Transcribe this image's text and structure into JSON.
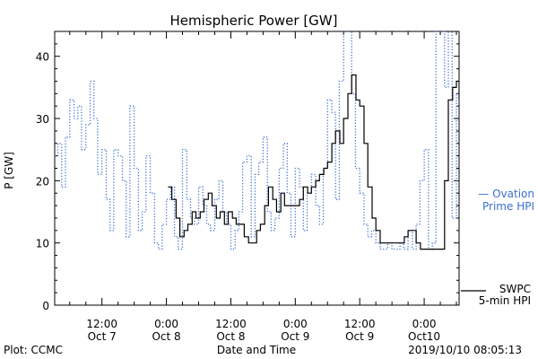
{
  "chart_data": {
    "type": "line",
    "title": "Hemispheric Power [GW]",
    "ylabel": "P [GW]",
    "xlabel": "Date and Time",
    "ylim": [
      0,
      44
    ],
    "yticks": [
      0,
      10,
      20,
      30,
      40
    ],
    "x_unit": "hours since 2019-10-07 00:00 UT",
    "xlim": [
      3.2,
      78.5
    ],
    "xticks": [
      {
        "t": 12,
        "time": "12:00",
        "date": "Oct 7"
      },
      {
        "t": 24,
        "time": "0:00",
        "date": "Oct 8"
      },
      {
        "t": 36,
        "time": "12:00",
        "date": "Oct 8"
      },
      {
        "t": 48,
        "time": "0:00",
        "date": "Oct 9"
      },
      {
        "t": 60,
        "time": "12:00",
        "date": "Oct 9"
      },
      {
        "t": 72,
        "time": "0:00",
        "date": "Oct10"
      }
    ],
    "grid": false,
    "legend": "right",
    "series": [
      {
        "name": "SWPC 5-min HPI",
        "color": "#000000",
        "style": "solid",
        "label_lines": [
          "SWPC",
          "5-min HPI"
        ],
        "points": [
          [
            24.3,
            19
          ],
          [
            25.0,
            17
          ],
          [
            25.8,
            14
          ],
          [
            26.5,
            11
          ],
          [
            27.3,
            12
          ],
          [
            28.0,
            13
          ],
          [
            28.8,
            15
          ],
          [
            29.5,
            14
          ],
          [
            30.3,
            15
          ],
          [
            31.0,
            17
          ],
          [
            31.8,
            18
          ],
          [
            32.5,
            16
          ],
          [
            33.3,
            14
          ],
          [
            34.0,
            15
          ],
          [
            34.8,
            13
          ],
          [
            35.5,
            15
          ],
          [
            36.3,
            14
          ],
          [
            37.0,
            13
          ],
          [
            37.8,
            13
          ],
          [
            38.5,
            11
          ],
          [
            39.3,
            10
          ],
          [
            40.0,
            10
          ],
          [
            40.8,
            12
          ],
          [
            41.5,
            13
          ],
          [
            42.3,
            16
          ],
          [
            43.0,
            19
          ],
          [
            43.8,
            17
          ],
          [
            44.5,
            15
          ],
          [
            45.3,
            18
          ],
          [
            46.0,
            16
          ],
          [
            47.0,
            16
          ],
          [
            48.0,
            16
          ],
          [
            48.8,
            17
          ],
          [
            49.5,
            19
          ],
          [
            50.3,
            18
          ],
          [
            51.0,
            19
          ],
          [
            51.8,
            20
          ],
          [
            52.5,
            21
          ],
          [
            53.3,
            22
          ],
          [
            54.0,
            23
          ],
          [
            54.8,
            26
          ],
          [
            55.5,
            28
          ],
          [
            56.3,
            26
          ],
          [
            57.0,
            30
          ],
          [
            57.8,
            34
          ],
          [
            58.5,
            37
          ],
          [
            59.3,
            33
          ],
          [
            60.0,
            32
          ],
          [
            60.8,
            26
          ],
          [
            61.5,
            19
          ],
          [
            62.3,
            14
          ],
          [
            63.0,
            12
          ],
          [
            63.8,
            10
          ],
          [
            64.5,
            10
          ],
          [
            65.3,
            10
          ],
          [
            66.0,
            10
          ],
          [
            66.8,
            10
          ],
          [
            67.5,
            10
          ],
          [
            68.3,
            11
          ],
          [
            69.0,
            12
          ],
          [
            69.8,
            12
          ],
          [
            70.5,
            10
          ],
          [
            71.3,
            9
          ],
          [
            72.0,
            9
          ],
          [
            72.8,
            9
          ],
          [
            73.5,
            9
          ],
          [
            74.3,
            9
          ],
          [
            75.0,
            9
          ],
          [
            75.8,
            20
          ],
          [
            76.5,
            33
          ],
          [
            77.3,
            35
          ],
          [
            78.0,
            36
          ],
          [
            78.5,
            33
          ]
        ]
      },
      {
        "name": "Ovation Prime HPI",
        "color": "#3b6fd1",
        "style": "dotted",
        "label_lines": [
          "— Ovation",
          "Prime HPI"
        ],
        "points": [
          [
            3.2,
            24
          ],
          [
            3.8,
            26
          ],
          [
            4.5,
            19
          ],
          [
            5.2,
            27
          ],
          [
            6.0,
            33
          ],
          [
            6.8,
            30
          ],
          [
            7.5,
            32
          ],
          [
            8.2,
            25
          ],
          [
            9.0,
            29
          ],
          [
            9.8,
            36
          ],
          [
            10.5,
            30
          ],
          [
            11.2,
            21
          ],
          [
            12.0,
            25
          ],
          [
            12.8,
            17
          ],
          [
            13.5,
            12
          ],
          [
            14.2,
            25
          ],
          [
            15.0,
            24
          ],
          [
            15.8,
            20
          ],
          [
            16.5,
            11
          ],
          [
            17.2,
            32
          ],
          [
            18.0,
            22
          ],
          [
            18.8,
            12
          ],
          [
            19.5,
            15
          ],
          [
            20.2,
            24
          ],
          [
            21.0,
            18
          ],
          [
            21.8,
            10
          ],
          [
            22.5,
            9
          ],
          [
            23.2,
            13
          ],
          [
            24.0,
            17
          ],
          [
            24.8,
            19
          ],
          [
            25.5,
            11
          ],
          [
            26.2,
            9
          ],
          [
            27.0,
            25
          ],
          [
            27.8,
            17
          ],
          [
            28.5,
            14
          ],
          [
            29.2,
            13
          ],
          [
            30.0,
            19
          ],
          [
            30.8,
            16
          ],
          [
            31.5,
            13
          ],
          [
            32.2,
            12
          ],
          [
            33.0,
            17
          ],
          [
            33.8,
            20
          ],
          [
            34.5,
            15
          ],
          [
            35.2,
            13
          ],
          [
            36.0,
            9
          ],
          [
            36.8,
            12
          ],
          [
            37.5,
            15
          ],
          [
            38.2,
            23
          ],
          [
            39.0,
            24
          ],
          [
            39.8,
            11
          ],
          [
            40.5,
            21
          ],
          [
            41.2,
            23
          ],
          [
            42.0,
            27
          ],
          [
            42.8,
            15
          ],
          [
            43.5,
            12
          ],
          [
            44.2,
            14
          ],
          [
            45.0,
            22
          ],
          [
            45.8,
            26
          ],
          [
            46.5,
            18
          ],
          [
            47.2,
            11
          ],
          [
            48.0,
            22
          ],
          [
            48.8,
            19
          ],
          [
            49.5,
            12
          ],
          [
            50.2,
            18
          ],
          [
            51.0,
            21
          ],
          [
            51.8,
            16
          ],
          [
            52.5,
            13
          ],
          [
            53.2,
            22
          ],
          [
            54.0,
            33
          ],
          [
            54.8,
            31
          ],
          [
            55.5,
            17
          ],
          [
            56.2,
            36
          ],
          [
            57.0,
            44
          ],
          [
            57.8,
            44
          ],
          [
            58.5,
            34
          ],
          [
            59.2,
            22
          ],
          [
            60.0,
            18
          ],
          [
            60.8,
            13
          ],
          [
            61.5,
            11
          ],
          [
            62.2,
            12
          ],
          [
            63.0,
            10
          ],
          [
            63.8,
            9
          ],
          [
            64.5,
            9
          ],
          [
            65.2,
            10
          ],
          [
            66.0,
            9
          ],
          [
            66.8,
            9
          ],
          [
            67.5,
            10
          ],
          [
            68.2,
            9
          ],
          [
            69.0,
            12
          ],
          [
            69.8,
            9
          ],
          [
            70.5,
            13
          ],
          [
            71.2,
            20
          ],
          [
            72.0,
            25
          ],
          [
            72.8,
            9
          ],
          [
            73.5,
            10
          ],
          [
            74.2,
            44
          ],
          [
            75.0,
            44
          ],
          [
            75.8,
            35
          ],
          [
            76.5,
            44
          ],
          [
            77.2,
            14
          ],
          [
            78.0,
            34
          ],
          [
            78.5,
            31
          ]
        ]
      }
    ]
  },
  "footer": {
    "left": "Plot: CCMC",
    "right": "2019/10/10 08:05:13"
  }
}
